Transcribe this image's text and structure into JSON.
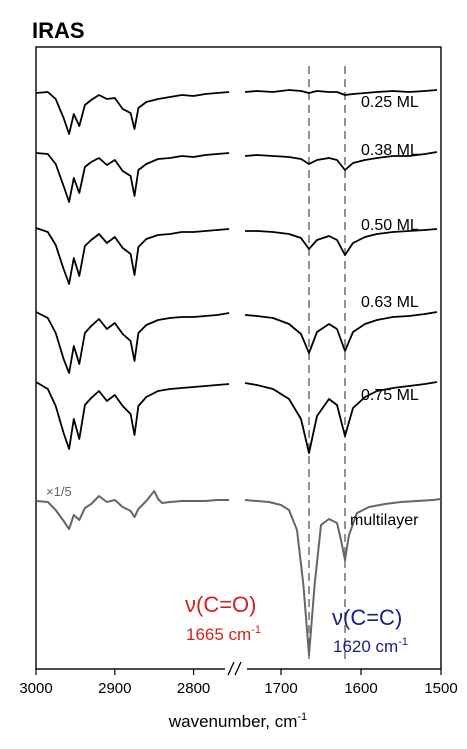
{
  "chart_data": {
    "type": "line",
    "title": "IRAS",
    "xlabel": "wavenumber, cm",
    "xlabel_sup": "-1",
    "ylabel": "",
    "x_segments": [
      {
        "xlim": [
          3000,
          2750
        ],
        "ticks": [
          3000,
          2900,
          2800
        ]
      },
      {
        "xlim": [
          1750,
          1500
        ],
        "ticks": [
          1700,
          1600,
          1500
        ]
      }
    ],
    "axis_break": "//",
    "scale_note": "×1/5",
    "grid": false,
    "series": [
      {
        "name": "0.25 ML",
        "color": "#000000",
        "left": {
          "x": [
            3000,
            2985,
            2975,
            2965,
            2958,
            2952,
            2945,
            2938,
            2930,
            2920,
            2910,
            2900,
            2890,
            2880,
            2875,
            2870,
            2860,
            2845,
            2830,
            2815,
            2800,
            2785,
            2770,
            2755
          ],
          "y": [
            0.9,
            1.0,
            0.3,
            -1.6,
            -3.2,
            -1.2,
            -2.4,
            -0.3,
            0.2,
            0.7,
            0.3,
            0.4,
            -0.7,
            -1.1,
            -2.7,
            -0.6,
            0.0,
            0.3,
            0.5,
            0.7,
            0.6,
            0.8,
            0.9,
            1.0
          ]
        },
        "right": {
          "x": [
            1745,
            1730,
            1710,
            1690,
            1675,
            1665,
            1655,
            1640,
            1630,
            1620,
            1610,
            1595,
            1580,
            1560,
            1540,
            1520,
            1505
          ],
          "y": [
            1.0,
            1.1,
            1.0,
            1.2,
            1.1,
            0.9,
            1.1,
            1.0,
            1.0,
            0.7,
            0.8,
            0.9,
            1.0,
            1.1,
            1.0,
            1.1,
            1.2
          ]
        }
      },
      {
        "name": "0.38 ML",
        "color": "#000000",
        "left": {
          "x": [
            3000,
            2985,
            2975,
            2965,
            2958,
            2952,
            2945,
            2938,
            2930,
            2920,
            2910,
            2900,
            2890,
            2880,
            2875,
            2870,
            2860,
            2845,
            2830,
            2815,
            2800,
            2785,
            2770,
            2755
          ],
          "y": [
            0.9,
            0.8,
            -0.2,
            -2.4,
            -4.0,
            -1.6,
            -3.1,
            -0.5,
            0.0,
            0.4,
            -0.3,
            0.2,
            -0.9,
            -1.4,
            -3.4,
            -0.8,
            -0.2,
            0.3,
            0.4,
            0.6,
            0.5,
            0.7,
            0.8,
            0.9
          ]
        },
        "right": {
          "x": [
            1745,
            1730,
            1710,
            1690,
            1675,
            1665,
            1655,
            1640,
            1630,
            1620,
            1610,
            1595,
            1580,
            1560,
            1540,
            1520,
            1505
          ],
          "y": [
            0.6,
            0.7,
            0.6,
            0.5,
            0.3,
            -0.2,
            0.2,
            0.4,
            0.2,
            -0.8,
            -0.1,
            0.2,
            0.4,
            0.6,
            0.6,
            0.8,
            1.0
          ]
        }
      },
      {
        "name": "0.50 ML",
        "color": "#000000",
        "left": {
          "x": [
            3000,
            2985,
            2975,
            2965,
            2958,
            2952,
            2945,
            2938,
            2930,
            2920,
            2910,
            2900,
            2890,
            2880,
            2875,
            2870,
            2860,
            2845,
            2830,
            2815,
            2800,
            2785,
            2770,
            2755
          ],
          "y": [
            0.9,
            0.5,
            -0.8,
            -3.2,
            -4.7,
            -2.1,
            -3.9,
            -0.9,
            -0.3,
            0.3,
            -0.6,
            0.0,
            -1.1,
            -1.7,
            -3.8,
            -1.0,
            -0.2,
            0.2,
            0.3,
            0.5,
            0.5,
            0.6,
            0.7,
            0.8
          ]
        },
        "right": {
          "x": [
            1745,
            1730,
            1710,
            1690,
            1675,
            1665,
            1655,
            1640,
            1630,
            1620,
            1610,
            1595,
            1580,
            1560,
            1540,
            1520,
            1505
          ],
          "y": [
            0.6,
            0.6,
            0.5,
            0.3,
            -0.1,
            -1.2,
            -0.3,
            0.1,
            -0.3,
            -1.8,
            -0.6,
            0.0,
            0.3,
            0.5,
            0.6,
            0.7,
            0.8
          ]
        }
      },
      {
        "name": "0.63 ML",
        "color": "#000000",
        "left": {
          "x": [
            3000,
            2985,
            2975,
            2965,
            2958,
            2952,
            2945,
            2938,
            2930,
            2920,
            2910,
            2900,
            2890,
            2880,
            2875,
            2870,
            2860,
            2845,
            2830,
            2815,
            2800,
            2785,
            2770,
            2755
          ],
          "y": [
            0.9,
            0.3,
            -1.2,
            -3.8,
            -5.2,
            -2.5,
            -4.3,
            -1.2,
            -0.5,
            0.2,
            -0.8,
            -0.2,
            -1.3,
            -2.0,
            -4.0,
            -1.2,
            -0.4,
            0.1,
            0.3,
            0.4,
            0.4,
            0.5,
            0.6,
            0.8
          ]
        },
        "right": {
          "x": [
            1745,
            1730,
            1710,
            1690,
            1675,
            1665,
            1655,
            1640,
            1630,
            1620,
            1610,
            1595,
            1580,
            1560,
            1540,
            1520,
            1505
          ],
          "y": [
            0.6,
            0.5,
            0.3,
            -0.3,
            -1.3,
            -3.2,
            -1.1,
            -0.3,
            -0.8,
            -3.0,
            -1.1,
            -0.3,
            0.1,
            0.4,
            0.5,
            0.7,
            0.9
          ]
        }
      },
      {
        "name": "0.75 ML",
        "color": "#000000",
        "left": {
          "x": [
            3000,
            2985,
            2975,
            2965,
            2958,
            2952,
            2945,
            2938,
            2930,
            2920,
            2910,
            2900,
            2890,
            2880,
            2875,
            2870,
            2860,
            2845,
            2830,
            2815,
            2800,
            2785,
            2770,
            2755
          ],
          "y": [
            0.9,
            0.2,
            -1.5,
            -4.2,
            -5.8,
            -2.8,
            -4.8,
            -1.4,
            -0.7,
            0.0,
            -1.0,
            -0.4,
            -1.5,
            -2.3,
            -4.4,
            -1.5,
            -0.6,
            0.0,
            0.2,
            0.3,
            0.4,
            0.5,
            0.6,
            0.7
          ]
        },
        "right": {
          "x": [
            1745,
            1730,
            1710,
            1690,
            1675,
            1665,
            1655,
            1640,
            1630,
            1620,
            1610,
            1595,
            1580,
            1560,
            1540,
            1520,
            1505
          ],
          "y": [
            0.8,
            0.6,
            0.2,
            -0.8,
            -2.8,
            -6.2,
            -2.5,
            -0.8,
            -1.4,
            -4.5,
            -1.7,
            -0.6,
            0.0,
            0.3,
            0.5,
            0.7,
            0.9
          ]
        }
      },
      {
        "name": "multilayer",
        "color": "#666666",
        "left": {
          "x": [
            3000,
            2985,
            2975,
            2965,
            2958,
            2952,
            2945,
            2938,
            2930,
            2920,
            2910,
            2900,
            2890,
            2880,
            2875,
            2870,
            2860,
            2850,
            2845,
            2840,
            2830,
            2815,
            2800,
            2785,
            2770,
            2755
          ],
          "y": [
            0.4,
            0.3,
            -0.5,
            -1.6,
            -2.4,
            -1.0,
            -1.5,
            -0.3,
            0.1,
            0.9,
            0.3,
            0.5,
            -0.2,
            -0.6,
            -1.2,
            -0.4,
            0.4,
            1.4,
            0.6,
            0.2,
            0.3,
            0.4,
            0.4,
            0.4,
            0.5,
            0.5
          ]
        },
        "right": {
          "x": [
            1745,
            1730,
            1715,
            1700,
            1690,
            1680,
            1672,
            1665,
            1658,
            1650,
            1640,
            1630,
            1625,
            1620,
            1615,
            1605,
            1590,
            1570,
            1550,
            1530,
            1510,
            1500
          ],
          "y": [
            0.5,
            0.4,
            0.3,
            0.0,
            -0.5,
            -2.5,
            -8.0,
            -15.0,
            -8.0,
            -2.0,
            -1.4,
            -1.8,
            -3.5,
            -5.5,
            -3.0,
            -0.8,
            -0.2,
            0.1,
            0.3,
            0.4,
            0.5,
            0.6
          ]
        }
      }
    ],
    "markers": [
      {
        "x": 1665,
        "label": "ν(C=O)",
        "value_text": "1665 cm",
        "sup": "-1",
        "color": "#d32020"
      },
      {
        "x": 1620,
        "label": "ν(C=C)",
        "value_text": "1620 cm",
        "sup": "-1",
        "color": "#1d1d82"
      }
    ]
  }
}
